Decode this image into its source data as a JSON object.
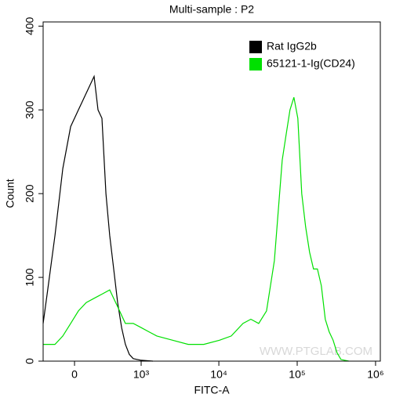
{
  "chart_data": {
    "type": "line",
    "title": "Multi-sample : P2",
    "xlabel": "FITC-A",
    "ylabel": "Count",
    "watermark": "WWW.PTGLAB.COM",
    "xscale": "biexponential",
    "xlim": [
      -305,
      1150000
    ],
    "xticks": [
      0,
      {
        "value": 1000,
        "label": "10³"
      },
      {
        "value": 10000,
        "label": "10⁴"
      },
      {
        "value": 100000,
        "label": "10⁵"
      },
      {
        "value": 1000000,
        "label": "10⁶"
      }
    ],
    "ylim": [
      0,
      405
    ],
    "yticks": [
      0,
      100,
      200,
      300,
      400
    ],
    "legend": "top-right",
    "series": [
      {
        "name": "Rat IgG2b",
        "color": "#000000",
        "x": [
          -305,
          -258,
          -175,
          -101,
          -33,
          33,
          101,
          175,
          215,
          258,
          305,
          354,
          410,
          471,
          539,
          610,
          691,
          783,
          1000,
          1426
        ],
        "values": [
          45,
          80,
          150,
          230,
          280,
          300,
          320,
          340,
          300,
          290,
          200,
          150,
          110,
          70,
          40,
          20,
          8,
          3,
          1,
          0
        ]
      },
      {
        "name": "65121-1-Ig(CD24)",
        "color": "#00e000",
        "x": [
          -305,
          -175,
          -101,
          -33,
          33,
          101,
          175,
          258,
          354,
          471,
          610,
          783,
          1000,
          1268,
          1604,
          2560,
          4058,
          6432,
          10195,
          14400,
          20340,
          25600,
          32240,
          40580,
          45530,
          51090,
          57330,
          64320,
          72170,
          80970,
          90860,
          101940,
          114380,
          128300,
          144000,
          161570,
          181280,
          203400,
          228200,
          256080,
          287300,
          322400,
          361700,
          455400
        ],
        "values": [
          20,
          20,
          30,
          45,
          60,
          70,
          75,
          80,
          85,
          65,
          45,
          45,
          40,
          35,
          30,
          25,
          20,
          20,
          25,
          30,
          45,
          50,
          45,
          60,
          90,
          120,
          180,
          240,
          270,
          300,
          315,
          290,
          200,
          160,
          130,
          110,
          110,
          90,
          50,
          35,
          25,
          10,
          2,
          0
        ]
      }
    ]
  }
}
